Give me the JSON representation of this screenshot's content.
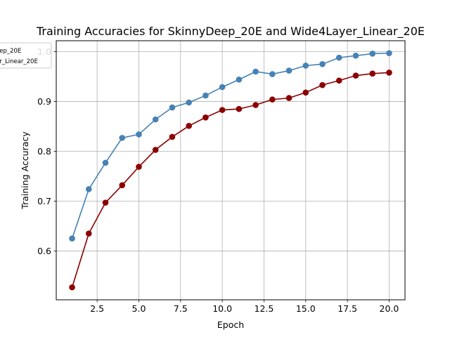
{
  "chart_data": {
    "type": "line",
    "title": "Training Accuracies for SkinnyDeep_20E and Wide4Layer_Linear_20E",
    "xlabel": "Epoch",
    "ylabel": "Training Accuracy",
    "xlim": [
      0.05,
      20.95
    ],
    "ylim": [
      0.502,
      1.022
    ],
    "x_ticks": [
      2.5,
      5.0,
      7.5,
      10.0,
      12.5,
      15.0,
      17.5,
      20.0
    ],
    "x_tick_labels": [
      "2.5",
      "5.0",
      "7.5",
      "10.0",
      "12.5",
      "15.0",
      "17.5",
      "20.0"
    ],
    "y_ticks": [
      0.6,
      0.7,
      0.8,
      0.9,
      1.0
    ],
    "y_tick_labels": [
      "0.6",
      "0.7",
      "0.8",
      "0.9",
      "1.0"
    ],
    "grid": true,
    "legend_position": "top-left",
    "x": [
      1,
      2,
      3,
      4,
      5,
      6,
      7,
      8,
      9,
      10,
      11,
      12,
      13,
      14,
      15,
      16,
      17,
      18,
      19,
      20
    ],
    "series": [
      {
        "name": "SkinnyDeep_20E",
        "legend_label": "eep_20E",
        "color": "#4682b4",
        "values": [
          0.625,
          0.724,
          0.777,
          0.827,
          0.834,
          0.864,
          0.888,
          0.898,
          0.912,
          0.929,
          0.944,
          0.96,
          0.955,
          0.962,
          0.972,
          0.975,
          0.988,
          0.992,
          0.996,
          0.997
        ]
      },
      {
        "name": "Wide4Layer_Linear_20E",
        "legend_label": "er_Linear_20E",
        "color": "#8b0000",
        "values": [
          0.527,
          0.635,
          0.697,
          0.732,
          0.769,
          0.803,
          0.829,
          0.851,
          0.868,
          0.883,
          0.885,
          0.893,
          0.904,
          0.907,
          0.918,
          0.933,
          0.942,
          0.952,
          0.956,
          0.958
        ]
      }
    ]
  }
}
